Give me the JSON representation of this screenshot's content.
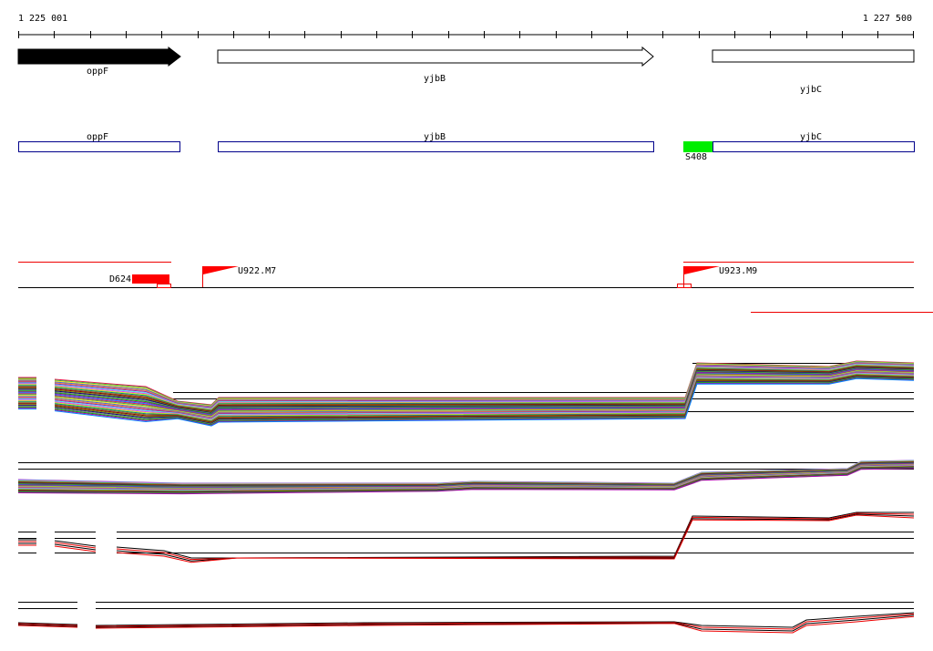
{
  "ruler": {
    "start": "1 225 001",
    "end": "1 227 500"
  },
  "genes": [
    {
      "label": "oppF"
    },
    {
      "label": "yjbB"
    },
    {
      "label": "yjbC"
    }
  ],
  "annotations": [
    {
      "label": "oppF"
    },
    {
      "label": "yjbB"
    },
    {
      "label": "S408"
    },
    {
      "label": "yjbC"
    }
  ],
  "features": [
    {
      "label": "D624"
    },
    {
      "label": "U922.M7"
    },
    {
      "label": "U923.M9"
    }
  ]
}
